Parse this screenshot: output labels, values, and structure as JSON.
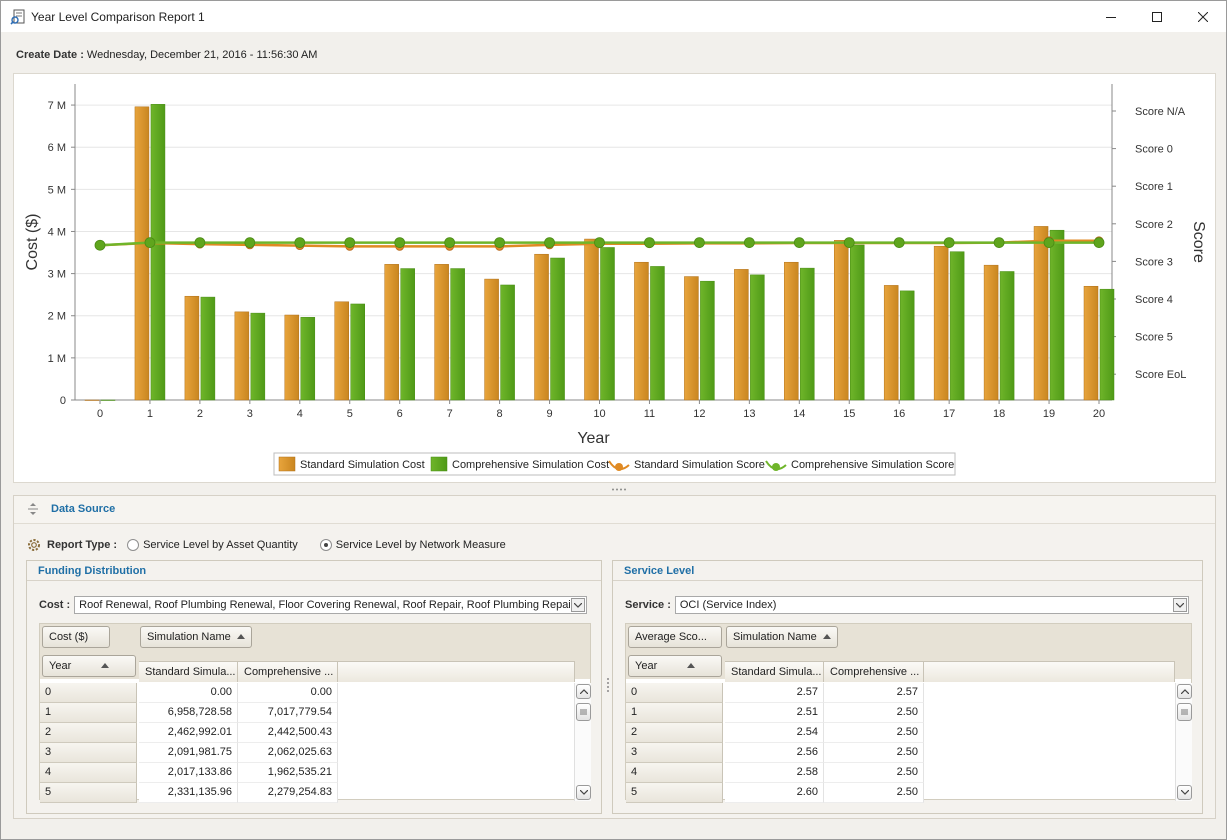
{
  "window": {
    "title": "Year Level Comparison Report 1",
    "controls": {
      "minimize": "minimize-icon",
      "maximize": "maximize-icon",
      "close": "close-icon"
    }
  },
  "create_date": {
    "label": "Create Date :",
    "value": "Wednesday, December 21, 2016 - 11:56:30 AM"
  },
  "chart_data": {
    "type": "bar",
    "categories": [
      "0",
      "1",
      "2",
      "3",
      "4",
      "5",
      "6",
      "7",
      "8",
      "9",
      "10",
      "11",
      "12",
      "13",
      "14",
      "15",
      "16",
      "17",
      "18",
      "19",
      "20"
    ],
    "xlabel": "Year",
    "ylabel": "Cost ($)",
    "ylabel_right": "Score",
    "ylim": [
      0,
      7500000
    ],
    "y_ticks": [
      {
        "v": 0,
        "label": "0"
      },
      {
        "v": 1000000,
        "label": "1 M"
      },
      {
        "v": 2000000,
        "label": "2 M"
      },
      {
        "v": 3000000,
        "label": "3 M"
      },
      {
        "v": 4000000,
        "label": "4 M"
      },
      {
        "v": 5000000,
        "label": "5 M"
      },
      {
        "v": 6000000,
        "label": "6 M"
      },
      {
        "v": 7000000,
        "label": "7 M"
      }
    ],
    "right_ticks": [
      "Score N/A",
      "Score 0",
      "Score 1",
      "Score 2",
      "Score 3",
      "Score 4",
      "Score 5",
      "Score EoL"
    ],
    "right_ticks_value": [
      -1,
      0,
      1,
      2,
      3,
      4,
      5,
      6
    ],
    "grid": true,
    "legend_position": "bottom",
    "series": [
      {
        "name": "Standard Simulation Cost",
        "kind": "bar",
        "color": "#e8a43c",
        "values": [
          0,
          6958728.58,
          2462992.01,
          2091981.75,
          2017133.86,
          2331135.96,
          3220000,
          3220000,
          2870000,
          3460000,
          3820000,
          3270000,
          2930000,
          3100000,
          3270000,
          3790000,
          2720000,
          3650000,
          3200000,
          4120000,
          2700000
        ]
      },
      {
        "name": "Comprehensive Simulation Cost",
        "kind": "bar",
        "color": "#6fb52a",
        "values": [
          0,
          7017779.54,
          2442500.43,
          2062025.63,
          1962535.21,
          2279254.83,
          3120000,
          3120000,
          2730000,
          3370000,
          3620000,
          3170000,
          2820000,
          2970000,
          3130000,
          3680000,
          2590000,
          3520000,
          3050000,
          4030000,
          2630000
        ]
      },
      {
        "name": "Standard Simulation Score",
        "kind": "line",
        "color": "#e08a23",
        "values": [
          2.57,
          2.51,
          2.54,
          2.56,
          2.58,
          2.6,
          2.6,
          2.6,
          2.6,
          2.56,
          2.53,
          2.53,
          2.52,
          2.52,
          2.51,
          2.51,
          2.51,
          2.51,
          2.5,
          2.45,
          2.45
        ]
      },
      {
        "name": "Comprehensive Simulation Score",
        "kind": "line",
        "color": "#6fb52a",
        "values": [
          2.57,
          2.5,
          2.5,
          2.5,
          2.5,
          2.5,
          2.5,
          2.5,
          2.5,
          2.5,
          2.5,
          2.5,
          2.5,
          2.5,
          2.5,
          2.5,
          2.5,
          2.5,
          2.5,
          2.5,
          2.5
        ]
      }
    ]
  },
  "data_source": {
    "title": "Data Source",
    "report_type_label": "Report Type :",
    "options": [
      {
        "label": "Service Level by Asset Quantity",
        "selected": false
      },
      {
        "label": "Service Level by Network Measure",
        "selected": true
      }
    ]
  },
  "funding": {
    "title": "Funding Distribution",
    "combo_label": "Cost :",
    "combo_value": "Roof Renewal, Roof Plumbing Renewal, Floor Covering Renewal, Roof Repair, Roof Plumbing Repai...",
    "data_field": "Cost ($)",
    "column_field": "Simulation Name",
    "row_field": "Year",
    "col_headers": [
      "Standard Simula...",
      "Comprehensive ..."
    ],
    "rows": [
      [
        "0",
        "0.00",
        "0.00"
      ],
      [
        "1",
        "6,958,728.58",
        "7,017,779.54"
      ],
      [
        "2",
        "2,462,992.01",
        "2,442,500.43"
      ],
      [
        "3",
        "2,091,981.75",
        "2,062,025.63"
      ],
      [
        "4",
        "2,017,133.86",
        "1,962,535.21"
      ],
      [
        "5",
        "2,331,135.96",
        "2,279,254.83"
      ]
    ]
  },
  "service": {
    "title": "Service Level",
    "combo_label": "Service :",
    "combo_value": "OCI (Service Index)",
    "data_field": "Average Sco...",
    "column_field": "Simulation Name",
    "row_field": "Year",
    "col_headers": [
      "Standard Simula...",
      "Comprehensive ..."
    ],
    "rows": [
      [
        "0",
        "2.57",
        "2.57"
      ],
      [
        "1",
        "2.51",
        "2.50"
      ],
      [
        "2",
        "2.54",
        "2.50"
      ],
      [
        "3",
        "2.56",
        "2.50"
      ],
      [
        "4",
        "2.58",
        "2.50"
      ],
      [
        "5",
        "2.60",
        "2.50"
      ]
    ]
  }
}
